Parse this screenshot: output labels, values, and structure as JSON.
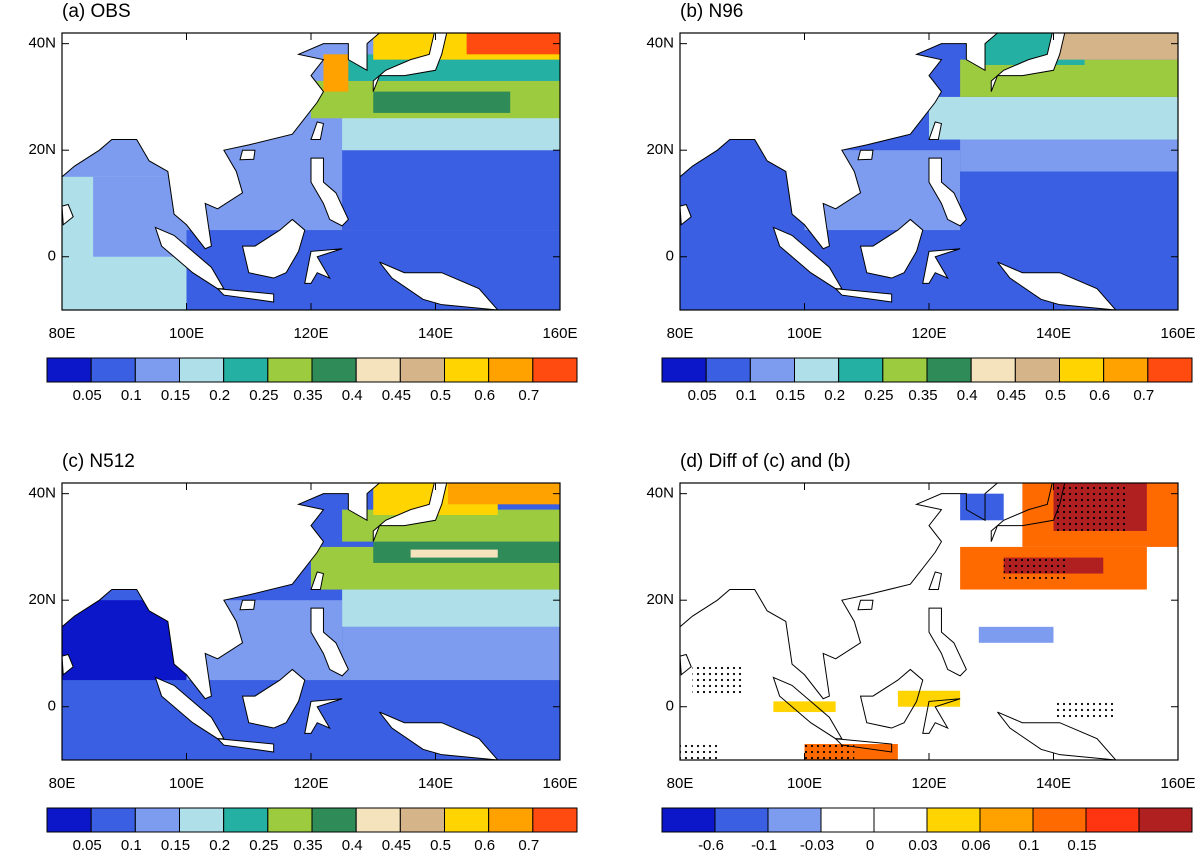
{
  "panels": [
    {
      "title": "(a) OBS",
      "kind": "obs"
    },
    {
      "title": "(b) N96",
      "kind": "n96"
    },
    {
      "title": "(c) N512",
      "kind": "n512"
    },
    {
      "title": "(d) Diff of (c) and (b)",
      "kind": "diff"
    }
  ],
  "x_tick_labels": [
    "80E",
    "100E",
    "120E",
    "140E",
    "160E"
  ],
  "y_tick_labels": [
    "40N",
    "20N",
    "0"
  ],
  "colorbar": {
    "colors": [
      "#0b17c9",
      "#3b5fe2",
      "#7d9cf0",
      "#afe0ea",
      "#24b0a2",
      "#9ccb3f",
      "#2f8b57",
      "#f4e3bd",
      "#d6b48a",
      "#ffd400",
      "#ffa200",
      "#ff4a10"
    ],
    "labels": [
      "0.05",
      "0.1",
      "0.15",
      "0.2",
      "0.25",
      "0.35",
      "0.4",
      "0.45",
      "0.5",
      "0.6",
      "0.7"
    ]
  },
  "diff_colorbar": {
    "colors": [
      "#0b17c9",
      "#3b5fe2",
      "#7d9cf0",
      "#ffffff",
      "#ffffff",
      "#ffd400",
      "#ffa200",
      "#ff6a00",
      "#ff3410",
      "#b02020"
    ],
    "labels": [
      "-0.6",
      "-0.1",
      "-0.03",
      "0",
      "0.03",
      "0.06",
      "0.1",
      "0.15"
    ]
  }
}
